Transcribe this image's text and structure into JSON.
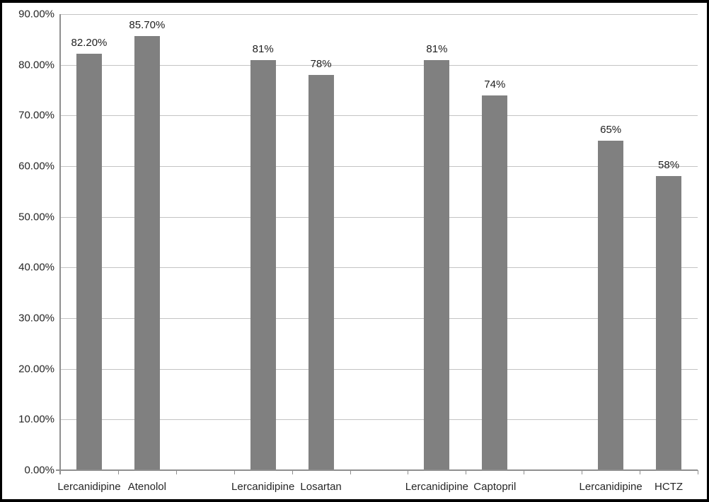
{
  "chart_data": {
    "type": "bar",
    "title": "",
    "xlabel": "",
    "ylabel": "",
    "categories": [
      "Lercanidipine",
      "Atenolol",
      "",
      "Lercanidipine",
      "Losartan",
      "",
      "Lercanidipine",
      "Captopril",
      "",
      "Lercanidipine",
      "HCTZ"
    ],
    "values": [
      82.2,
      85.7,
      null,
      81,
      78,
      null,
      81,
      74,
      null,
      65,
      58
    ],
    "labels": [
      "82.20%",
      "85.70%",
      "",
      "81%",
      "78%",
      "",
      "81%",
      "74%",
      "",
      "65%",
      "58%"
    ],
    "groups": [
      {
        "pair": [
          "Lercanidipine",
          "Atenolol"
        ],
        "values": [
          82.2,
          85.7
        ]
      },
      {
        "pair": [
          "Lercanidipine",
          "Losartan"
        ],
        "values": [
          81,
          78
        ]
      },
      {
        "pair": [
          "Lercanidipine",
          "Captopril"
        ],
        "values": [
          81,
          74
        ]
      },
      {
        "pair": [
          "Lercanidipine",
          "HCTZ"
        ],
        "values": [
          65,
          58
        ]
      }
    ],
    "ylim": [
      0,
      90
    ],
    "ytick_step": 10,
    "ytick_labels": [
      "0.00%",
      "10.00%",
      "20.00%",
      "30.00%",
      "40.00%",
      "50.00%",
      "60.00%",
      "70.00%",
      "80.00%",
      "90.00%"
    ],
    "grid": true,
    "legend": false,
    "bar_color": "#808080",
    "gridline_color": "#c3c3c3",
    "axis_color": "#8f8f8f",
    "text_color": "#262626",
    "frame_border_color": "#000000"
  }
}
